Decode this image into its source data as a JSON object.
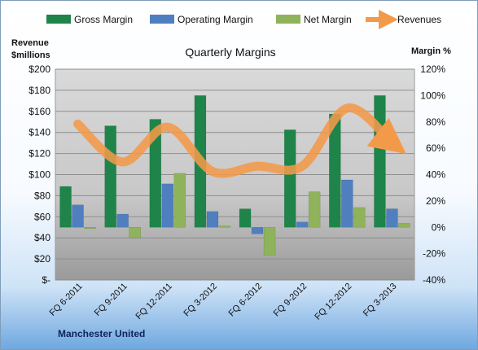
{
  "chart_data": {
    "type": "bar",
    "title": "Quarterly Margins",
    "subtitle_left": "Manchester United",
    "y_left_label_line1": "Revenue",
    "y_left_label_line2": "$millions",
    "y_right_label": "Margin %",
    "categories": [
      "FQ 6-2011",
      "FQ 9-2011",
      "FQ 12-2011",
      "FQ 3-2012",
      "FQ 6-2012",
      "FQ 9-2012",
      "FQ 12-2012",
      "FQ 3-2013"
    ],
    "y_left_ticks": [
      "$-",
      "$20",
      "$40",
      "$60",
      "$80",
      "$100",
      "$120",
      "$140",
      "$160",
      "$180",
      "$200"
    ],
    "y_left_range": [
      0,
      200
    ],
    "y_right_ticks": [
      "-40%",
      "-20%",
      "0%",
      "20%",
      "40%",
      "60%",
      "80%",
      "100%",
      "120%"
    ],
    "y_right_range": [
      -40,
      120
    ],
    "series": [
      {
        "name": "Gross Margin",
        "axis": "right",
        "type": "bar",
        "color": "#1e8449",
        "values": [
          31,
          77,
          82,
          100,
          14,
          74,
          86,
          100
        ]
      },
      {
        "name": "Operating Margin",
        "axis": "right",
        "type": "bar",
        "color": "#4f7fbf",
        "values": [
          17,
          10,
          33,
          12,
          -5,
          4,
          36,
          14
        ]
      },
      {
        "name": "Net Margin",
        "axis": "right",
        "type": "bar",
        "color": "#8fb35a",
        "values": [
          -1,
          -8,
          41,
          1,
          -21,
          27,
          15,
          3
        ]
      },
      {
        "name": "Revenues",
        "axis": "left",
        "type": "line",
        "color": "#f39a4a",
        "values": [
          148,
          112,
          145,
          103,
          108,
          108,
          163,
          130
        ]
      }
    ],
    "grid": true,
    "legend_position": "top"
  }
}
